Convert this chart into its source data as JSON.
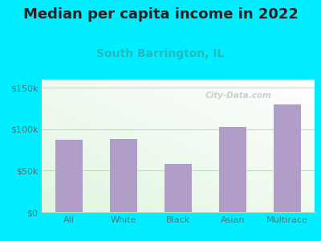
{
  "title": "Median per capita income in 2022",
  "subtitle": "South Barrington, IL",
  "categories": [
    "All",
    "White",
    "Black",
    "Asian",
    "Multirace"
  ],
  "values": [
    87000,
    88000,
    58000,
    103000,
    130000
  ],
  "bar_color": "#b09dc8",
  "title_fontsize": 13,
  "subtitle_fontsize": 10,
  "subtitle_color": "#22bbbb",
  "title_color": "#222222",
  "tick_label_color": "#447777",
  "background_outer": "#00eeff",
  "ylim": [
    0,
    160000
  ],
  "yticks": [
    0,
    50000,
    100000,
    150000
  ],
  "ytick_labels": [
    "$0",
    "$50k",
    "$100k",
    "$150k"
  ],
  "watermark": "City-Data.com",
  "grid_color": "#bbddbb",
  "axis_label_color": "#447777",
  "bar_width": 0.5
}
